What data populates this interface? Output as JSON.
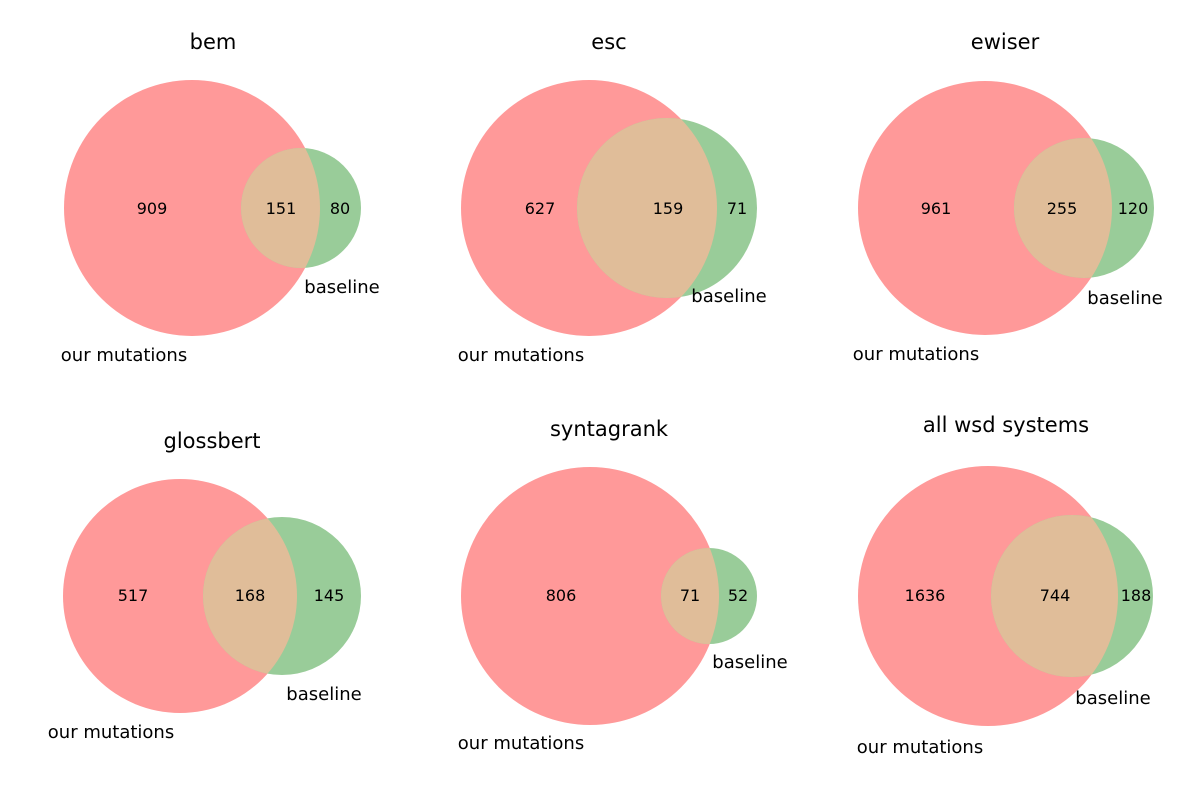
{
  "chart_data": [
    {
      "type": "venn",
      "title": "bem",
      "sets": [
        "our mutations",
        "baseline"
      ],
      "counts": {
        "our_mutations_only": 909,
        "both": 151,
        "baseline_only": 80
      }
    },
    {
      "type": "venn",
      "title": "esc",
      "sets": [
        "our mutations",
        "baseline"
      ],
      "counts": {
        "our_mutations_only": 627,
        "both": 159,
        "baseline_only": 71
      }
    },
    {
      "type": "venn",
      "title": "ewiser",
      "sets": [
        "our mutations",
        "baseline"
      ],
      "counts": {
        "our_mutations_only": 961,
        "both": 255,
        "baseline_only": 120
      }
    },
    {
      "type": "venn",
      "title": "glossbert",
      "sets": [
        "our mutations",
        "baseline"
      ],
      "counts": {
        "our_mutations_only": 517,
        "both": 168,
        "baseline_only": 145
      }
    },
    {
      "type": "venn",
      "title": "syntagrank",
      "sets": [
        "our mutations",
        "baseline"
      ],
      "counts": {
        "our_mutations_only": 806,
        "both": 71,
        "baseline_only": 52
      }
    },
    {
      "type": "venn",
      "title": "all wsd systems",
      "sets": [
        "our mutations",
        "baseline"
      ],
      "counts": {
        "our_mutations_only": 1636,
        "both": 744,
        "baseline_only": 188
      }
    }
  ],
  "colors": {
    "our_mutations": "#ff9999",
    "baseline": "#99cc99",
    "overlap": "#e0bd99"
  }
}
